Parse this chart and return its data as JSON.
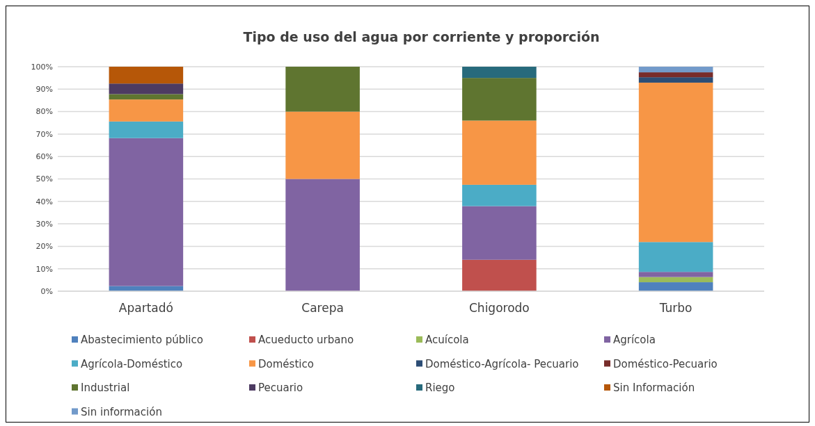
{
  "chart_data": {
    "type": "bar",
    "stacked": true,
    "title": "Tipo de uso del agua por corriente y proporción",
    "categories": [
      "Apartadó",
      "Carepa",
      "Chigorodo",
      "Turbo"
    ],
    "ylim": [
      0,
      100
    ],
    "yticks": [
      {
        "value": 0,
        "label": "0%"
      },
      {
        "value": 10,
        "label": "10%"
      },
      {
        "value": 20,
        "label": "20%"
      },
      {
        "value": 30,
        "label": "30%"
      },
      {
        "value": 40,
        "label": "40%"
      },
      {
        "value": 50,
        "label": "50%"
      },
      {
        "value": 60,
        "label": "60%"
      },
      {
        "value": 70,
        "label": "70%"
      },
      {
        "value": 80,
        "label": "80%"
      },
      {
        "value": 90,
        "label": "90%"
      },
      {
        "value": 100,
        "label": "100%"
      }
    ],
    "grid": "y",
    "legend": "bottom",
    "series": [
      {
        "name": "Abastecimiento público",
        "color": "#4f81bd",
        "values": [
          2.3,
          null,
          null,
          4.0
        ]
      },
      {
        "name": "Acueducto urbano",
        "color": "#c0504d",
        "values": [
          null,
          null,
          14.0,
          null
        ]
      },
      {
        "name": "Acuícola",
        "color": "#9bbb59",
        "values": [
          null,
          null,
          null,
          2.3
        ]
      },
      {
        "name": "Agrícola",
        "color": "#8064a2",
        "values": [
          65.9,
          50,
          23.9,
          2.3
        ]
      },
      {
        "name": "Agrícola-Doméstico",
        "color": "#4bacc6",
        "values": [
          7.4,
          null,
          9.5,
          13.3
        ]
      },
      {
        "name": "Doméstico",
        "color": "#f79646",
        "values": [
          9.8,
          30,
          28.6,
          71.0
        ]
      },
      {
        "name": "Doméstico-Agrícola- Pecuario",
        "color": "#2c4d75",
        "values": [
          null,
          null,
          null,
          2.4
        ]
      },
      {
        "name": "Doméstico-Pecuario",
        "color": "#772c2a",
        "values": [
          null,
          null,
          null,
          2.2
        ]
      },
      {
        "name": "Industrial",
        "color": "#5f7530",
        "values": [
          2.4,
          20,
          19.0,
          null
        ]
      },
      {
        "name": "Pecuario",
        "color": "#4d3b62",
        "values": [
          4.7,
          null,
          null,
          null
        ]
      },
      {
        "name": "Riego",
        "color": "#276a7c",
        "values": [
          null,
          null,
          5.0,
          null
        ]
      },
      {
        "name": "Sin Información",
        "color": "#b65708",
        "values": [
          7.5,
          null,
          null,
          null
        ]
      },
      {
        "name": "Sin información",
        "color": "#729aca",
        "values": [
          null,
          null,
          null,
          2.5
        ]
      }
    ]
  }
}
